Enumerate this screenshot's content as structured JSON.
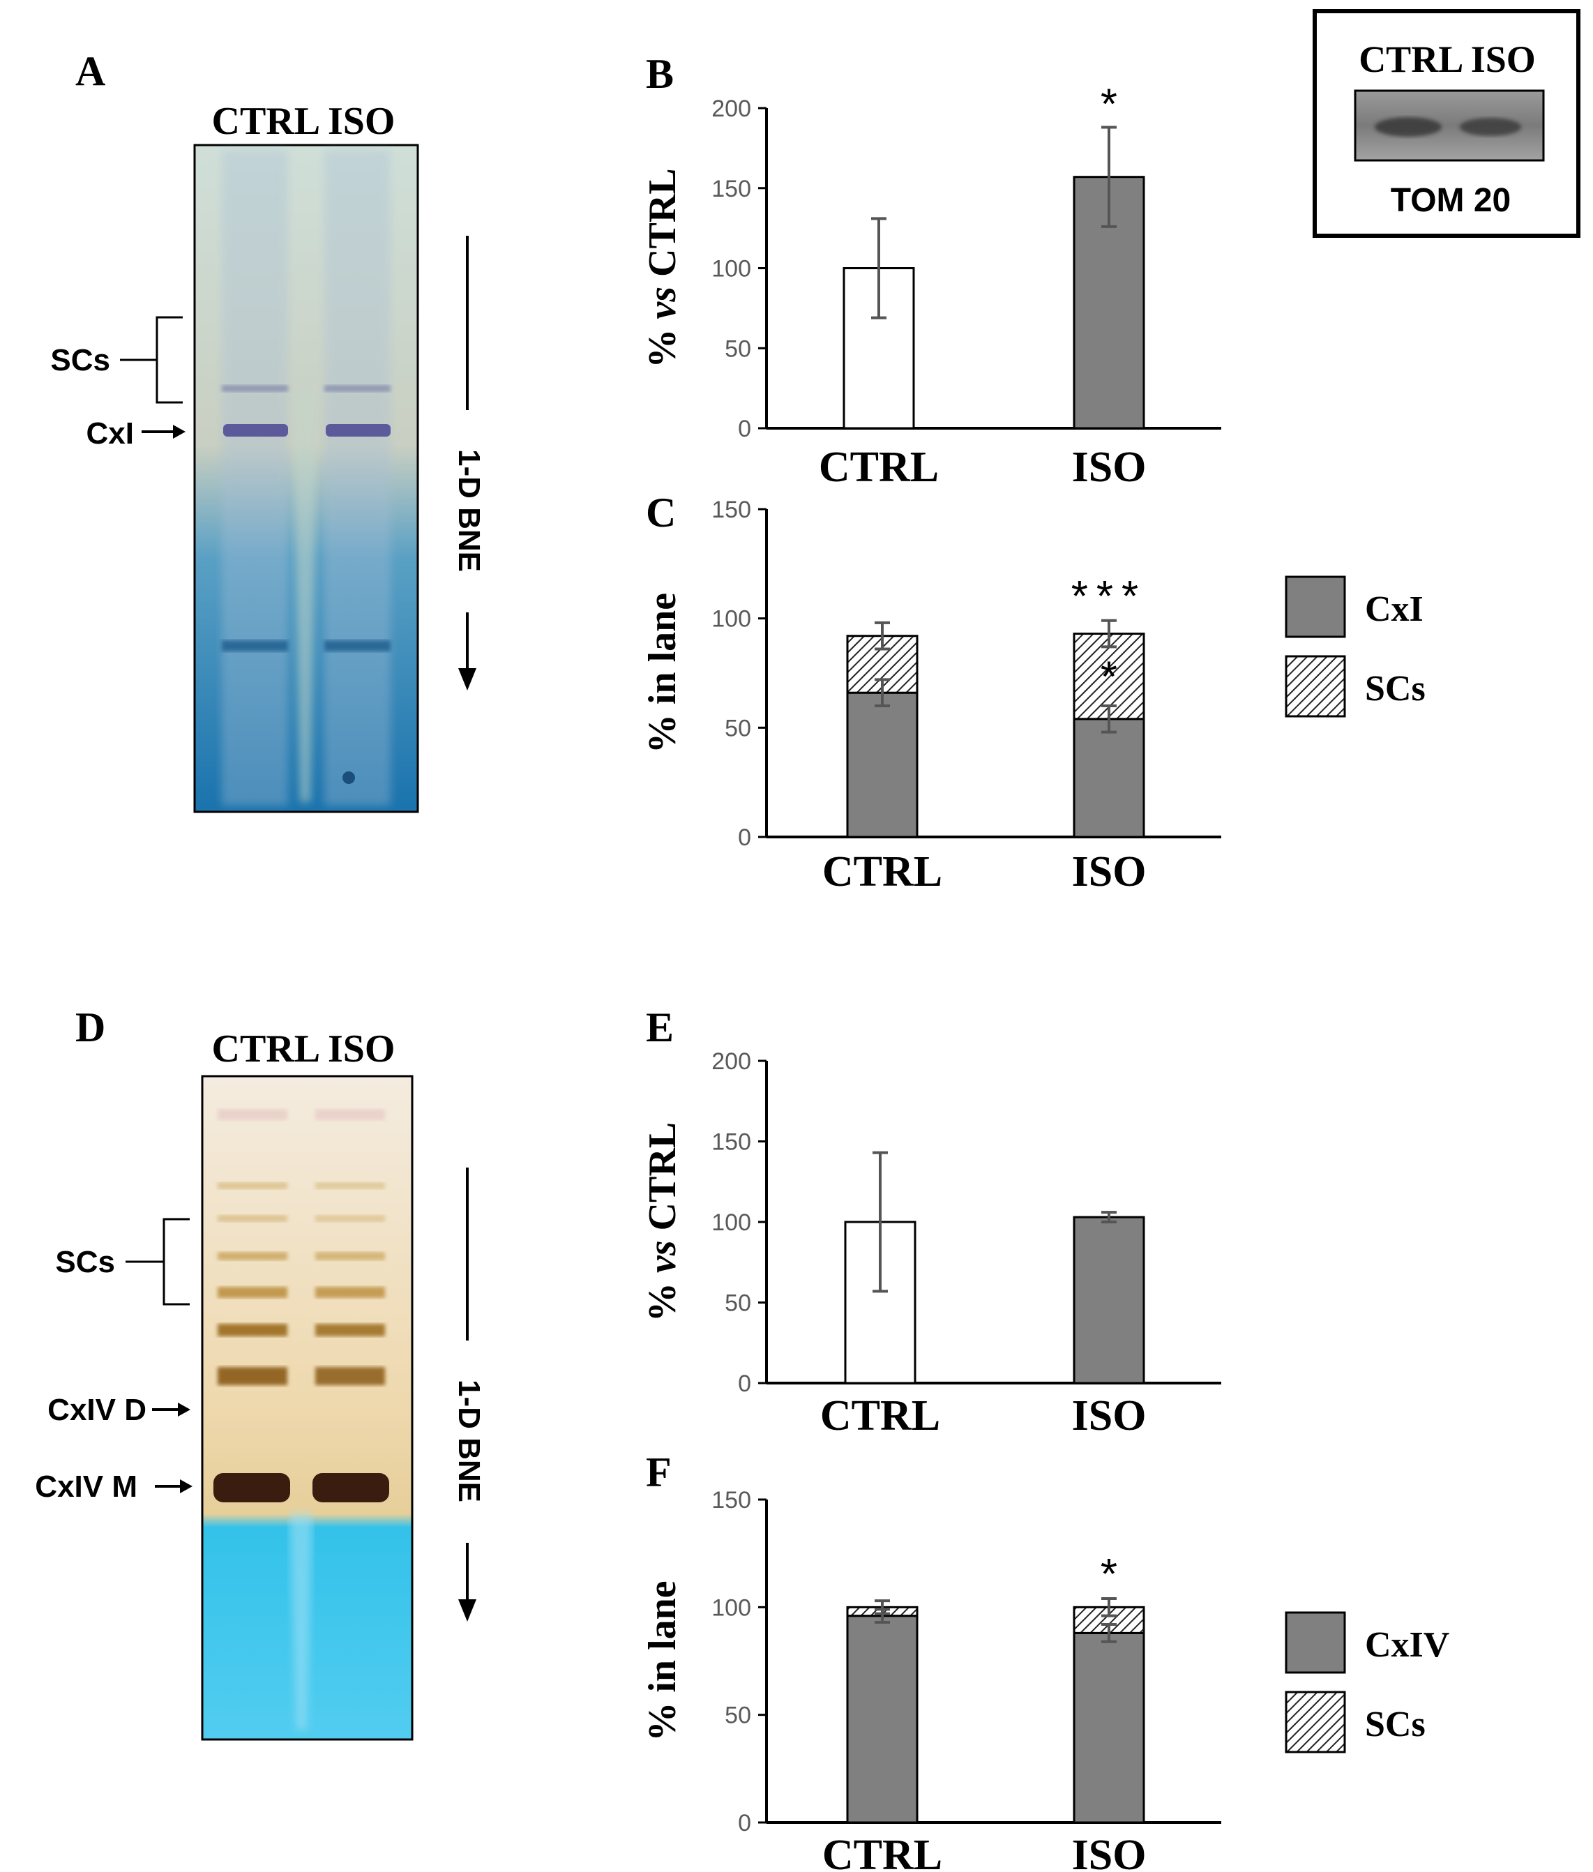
{
  "figure": {
    "panel_letters": {
      "A": "A",
      "B": "B",
      "C": "C",
      "D": "D",
      "E": "E",
      "F": "F"
    },
    "colors": {
      "bar_gray": "#808080",
      "axis": "#000000",
      "tick_text": "#595959"
    }
  },
  "gel_a": {
    "lane_header": "CTRL ISO",
    "labels": {
      "scs": "SCs",
      "cxi": "CxI"
    },
    "direction_label": "1-D BNE",
    "colors": {
      "top": "#cfdfd8",
      "mid": "#c9cfc2",
      "bottom": "#1a73ad",
      "band": "#5d5a9c"
    }
  },
  "gel_d": {
    "lane_header": "CTRL ISO",
    "labels": {
      "scs": "SCs",
      "cxiv_d": "CxIV D",
      "cxiv_m": "CxIV M"
    },
    "direction_label": "1-D BNE",
    "colors": {
      "top": "#f4ece0",
      "mid": "#eed8ad",
      "bottom": "#33c2ea",
      "band": "#3b1d10"
    }
  },
  "western_blot": {
    "lane_header": "CTRL ISO",
    "label": "TOM 20"
  },
  "chart_data": [
    {
      "panel": "B",
      "type": "bar",
      "categories": [
        "CTRL",
        "ISO"
      ],
      "values": [
        100,
        157
      ],
      "errors": [
        31,
        31
      ],
      "bar_colors": [
        "#ffffff",
        "#808080"
      ],
      "significance": [
        "",
        "*"
      ],
      "ylabel_parts": [
        "% ",
        "vs",
        " CTRL"
      ],
      "ylim": [
        0,
        200
      ],
      "yticks": [
        "0",
        "50",
        "100",
        "150",
        "200"
      ]
    },
    {
      "panel": "C",
      "type": "bar",
      "stacked": true,
      "categories": [
        "CTRL",
        "ISO"
      ],
      "series": [
        {
          "name": "CxI",
          "values": [
            66,
            54
          ],
          "errors": [
            6,
            6
          ]
        },
        {
          "name": "SCs",
          "values": [
            26,
            39
          ],
          "errors": [
            6,
            6
          ]
        }
      ],
      "significance_top": [
        "",
        "***"
      ],
      "significance_inner": [
        "",
        "*"
      ],
      "ylabel": "% in lane",
      "ylim": [
        0,
        150
      ],
      "yticks": [
        "0",
        "50",
        "100",
        "150"
      ],
      "legend": [
        {
          "label": "CxI",
          "style": "solid"
        },
        {
          "label": "SCs",
          "style": "hatched"
        }
      ]
    },
    {
      "panel": "E",
      "type": "bar",
      "categories": [
        "CTRL",
        "ISO"
      ],
      "values": [
        100,
        103
      ],
      "errors": [
        43,
        3
      ],
      "bar_colors": [
        "#ffffff",
        "#808080"
      ],
      "significance": [
        "",
        ""
      ],
      "ylabel_parts": [
        "% ",
        "vs",
        " CTRL"
      ],
      "ylim": [
        0,
        200
      ],
      "yticks": [
        "0",
        "50",
        "100",
        "150",
        "200"
      ]
    },
    {
      "panel": "F",
      "type": "bar",
      "stacked": true,
      "categories": [
        "CTRL",
        "ISO"
      ],
      "series": [
        {
          "name": "CxIV",
          "values": [
            96,
            88
          ],
          "errors": [
            3,
            4
          ]
        },
        {
          "name": "SCs",
          "values": [
            4,
            12
          ],
          "errors": [
            3,
            4
          ]
        }
      ],
      "significance_top": [
        "",
        "*"
      ],
      "significance_inner": [
        "",
        ""
      ],
      "ylabel": "% in lane",
      "ylim": [
        0,
        150
      ],
      "yticks": [
        "0",
        "50",
        "100",
        "150"
      ],
      "legend": [
        {
          "label": "CxIV",
          "style": "solid"
        },
        {
          "label": "SCs",
          "style": "hatched"
        }
      ]
    }
  ]
}
